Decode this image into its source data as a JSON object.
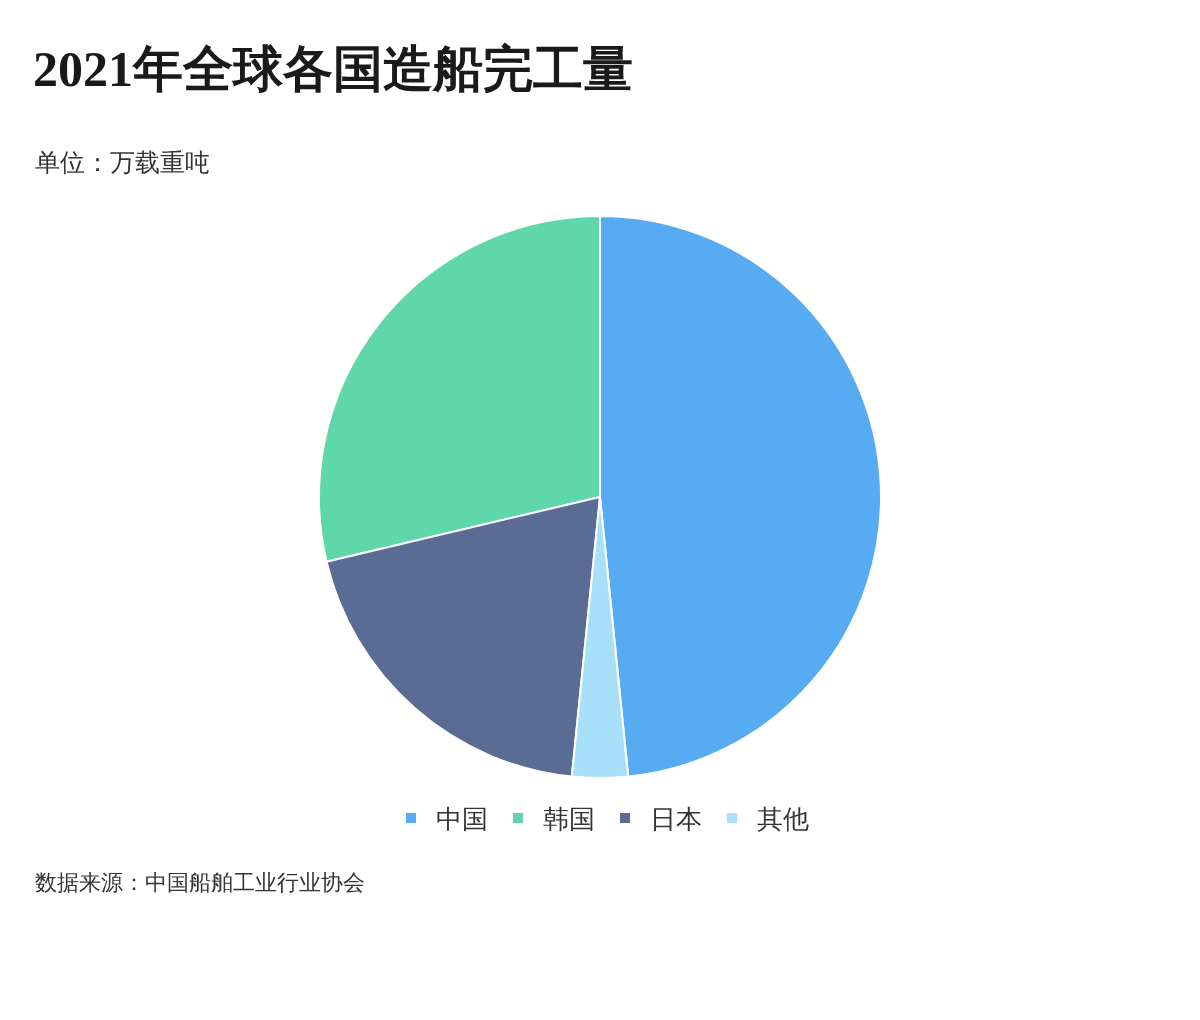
{
  "chart_data": {
    "type": "pie",
    "title": "2021年全球各国造船完工量",
    "subtitle": "单位：万载重吨",
    "categories": [
      "中国",
      "韩国",
      "日本",
      "其他"
    ],
    "values": [
      48.4,
      28.7,
      19.7,
      3.2
    ],
    "colors": [
      "#57abf2",
      "#5fd7aa",
      "#5a6b94",
      "#a8dff9"
    ],
    "legend": "bottom",
    "annotations": [
      "数据来源：中国船舶工业行业协会"
    ]
  }
}
